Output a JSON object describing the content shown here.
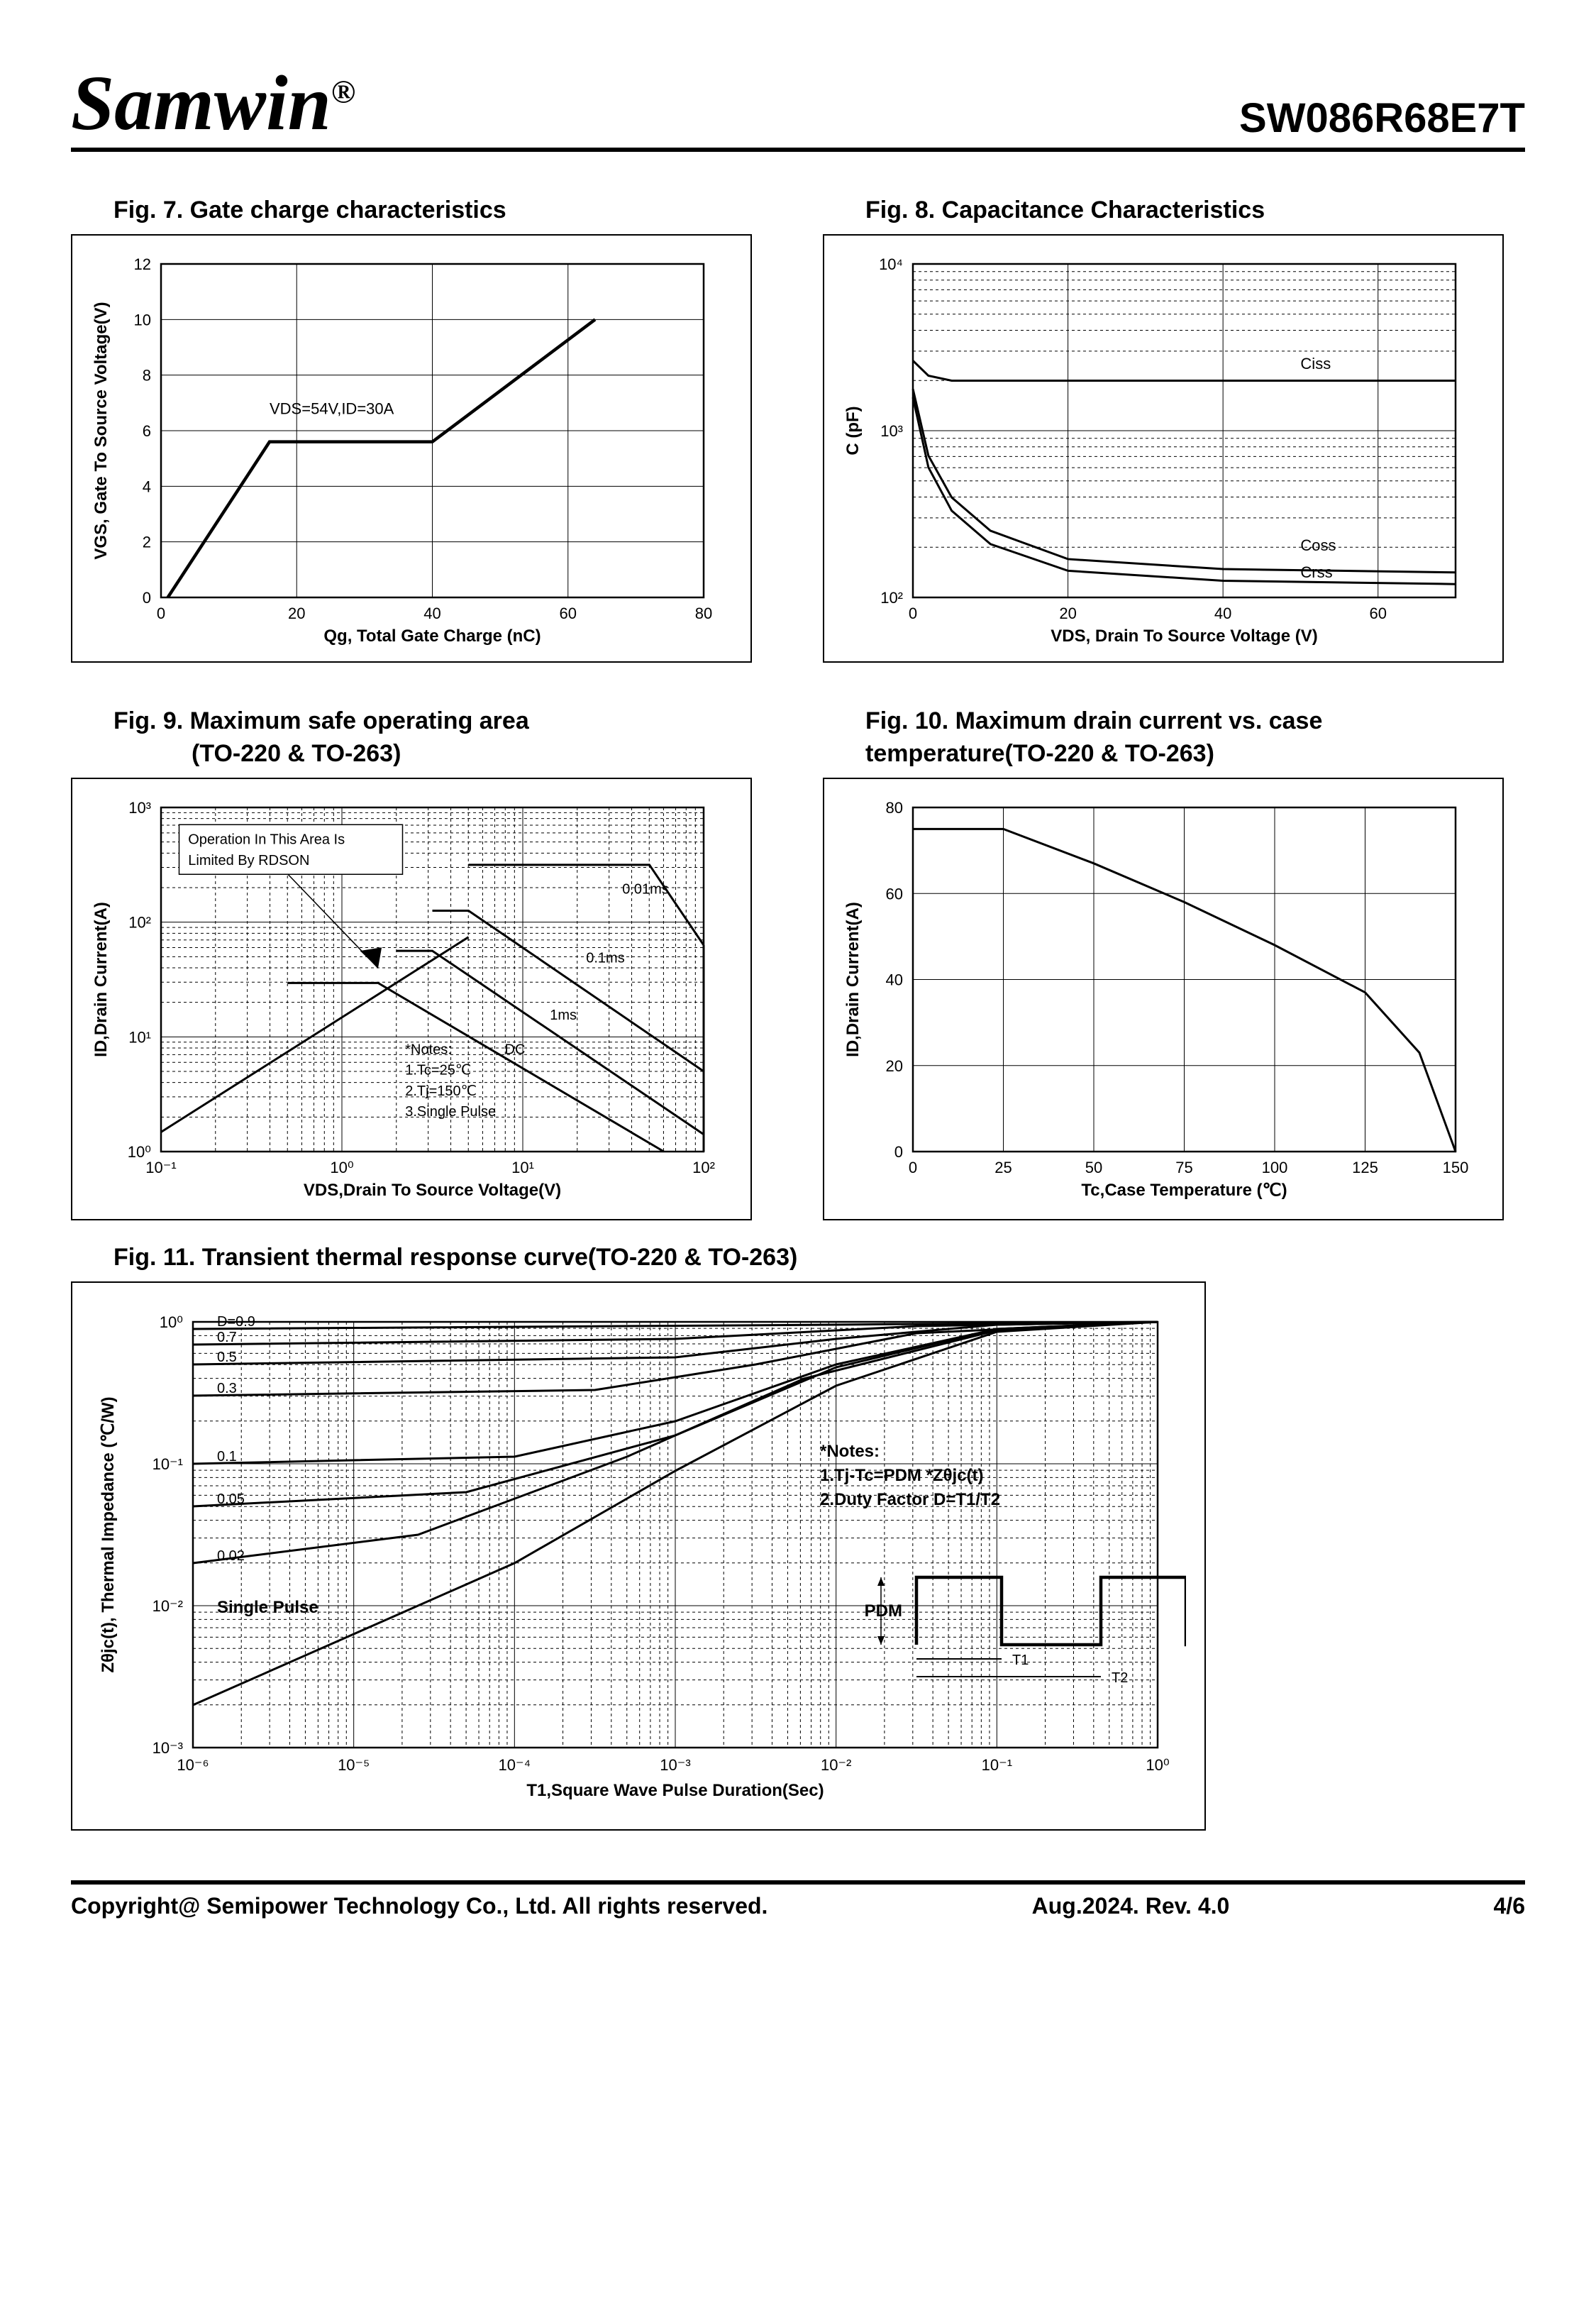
{
  "header": {
    "brand": "Samwin",
    "reg": "®",
    "part": "SW086R68E7T"
  },
  "footer": {
    "copyright": "Copyright@ Semipower Technology Co., Ltd. All rights reserved.",
    "rev": "Aug.2024. Rev. 4.0",
    "page": "4/6"
  },
  "fig7": {
    "title": "Fig. 7. Gate charge characteristics",
    "xlabel": "Qg, Total Gate Charge (nC)",
    "ylabel": "VGS, Gate To  Source Voltage(V)",
    "xlim": [
      0,
      80
    ],
    "xticks": [
      0,
      20,
      40,
      60,
      80
    ],
    "ylim": [
      0,
      12
    ],
    "yticks": [
      0,
      2,
      4,
      6,
      8,
      10,
      12
    ],
    "anno": "VDS=54V,ID=30A",
    "series": [
      [
        1,
        0
      ],
      [
        16,
        5.6
      ],
      [
        40,
        5.6
      ],
      [
        64,
        10
      ]
    ],
    "line_width": 4.5,
    "color": "#000000",
    "bg": "#ffffff"
  },
  "fig8": {
    "title": "Fig. 8. Capacitance Characteristics",
    "xlabel": "VDS, Drain To Source Voltage (V)",
    "ylabel": "C  (pF)",
    "xlim": [
      0,
      70
    ],
    "xticks": [
      0,
      20,
      40,
      60
    ],
    "ylog": [
      2,
      4
    ],
    "yticks": [
      "10²",
      "10³",
      "10⁴"
    ],
    "labels": [
      "Ciss",
      "Coss",
      "Crss"
    ],
    "ciss": [
      [
        0,
        3.42
      ],
      [
        2,
        3.33
      ],
      [
        5,
        3.3
      ],
      [
        70,
        3.3
      ]
    ],
    "coss": [
      [
        0,
        3.25
      ],
      [
        2,
        2.85
      ],
      [
        5,
        2.6
      ],
      [
        10,
        2.4
      ],
      [
        20,
        2.23
      ],
      [
        40,
        2.17
      ],
      [
        70,
        2.15
      ]
    ],
    "crss": [
      [
        0,
        3.2
      ],
      [
        2,
        2.78
      ],
      [
        5,
        2.52
      ],
      [
        10,
        2.32
      ],
      [
        20,
        2.16
      ],
      [
        40,
        2.1
      ],
      [
        70,
        2.08
      ]
    ],
    "line_width": 3,
    "color": "#000000"
  },
  "fig9": {
    "title1": "Fig. 9. Maximum safe operating area",
    "title2": "(TO-220 & TO-263)",
    "xlabel": "VDS,Drain To Source Voltage(V)",
    "ylabel": "ID,Drain Current(A)",
    "xlog": [
      -1,
      2
    ],
    "ylog": [
      0,
      3
    ],
    "xticks": [
      "10⁻¹",
      "10⁰",
      "10¹",
      "10²"
    ],
    "yticks": [
      "10⁰",
      "10¹",
      "10²",
      "10³"
    ],
    "anno1": "Operation In This Area Is",
    "anno2": "Limited By RDSON",
    "notes": [
      "*Notes:",
      "1.Tc=25℃",
      "2.Tj=150℃",
      "3.Single Pulse"
    ],
    "curve_labels": [
      "0.01ms",
      "0.1ms",
      "1ms",
      "DC"
    ],
    "rdson": [
      [
        -1,
        0.17
      ],
      [
        0.7,
        1.87
      ]
    ],
    "limit_top": [
      [
        0.7,
        2.5
      ],
      [
        1.7,
        2.5
      ]
    ],
    "c001": [
      [
        0.7,
        2.5
      ],
      [
        1.7,
        2.5
      ],
      [
        2,
        1.8
      ]
    ],
    "c01": [
      [
        0.5,
        2.1
      ],
      [
        0.7,
        2.1
      ],
      [
        2,
        0.7
      ]
    ],
    "c1": [
      [
        0.3,
        1.75
      ],
      [
        0.5,
        1.75
      ],
      [
        2,
        0.15
      ]
    ],
    "cdc": [
      [
        -0.3,
        1.47
      ],
      [
        0.2,
        1.47
      ],
      [
        1.78,
        0
      ]
    ],
    "line_width": 3,
    "color": "#000000"
  },
  "fig10": {
    "title1": "Fig. 10. Maximum drain current vs. case",
    "title2": "temperature(TO-220 & TO-263)",
    "xlabel": "Tc,Case Temperature (℃)",
    "ylabel": "ID,Drain Current(A)",
    "xlim": [
      0,
      150
    ],
    "xticks": [
      0,
      25,
      50,
      75,
      100,
      125,
      150
    ],
    "ylim": [
      0,
      80
    ],
    "yticks": [
      0,
      20,
      40,
      60,
      80
    ],
    "series": [
      [
        0,
        75
      ],
      [
        25,
        75
      ],
      [
        50,
        67
      ],
      [
        75,
        58
      ],
      [
        100,
        48
      ],
      [
        125,
        37
      ],
      [
        140,
        23
      ],
      [
        150,
        0
      ]
    ],
    "line_width": 3,
    "color": "#000000"
  },
  "fig11": {
    "title": "Fig. 11. Transient thermal response curve(TO-220 & TO-263)",
    "xlabel": "T1,Square Wave Pulse Duration(Sec)",
    "ylabel": "Zθjc(t), Thermal Impedance (℃/W)",
    "xlog": [
      -6,
      0
    ],
    "ylog": [
      -3,
      0
    ],
    "xticks": [
      "10⁻⁶",
      "10⁻⁵",
      "10⁻⁴",
      "10⁻³",
      "10⁻²",
      "10⁻¹",
      "10⁰"
    ],
    "yticks": [
      "10⁻³",
      "10⁻²",
      "10⁻¹",
      "10⁰"
    ],
    "d_labels": [
      "D=0.9",
      "0.7",
      "0.5",
      "0.3",
      "0.1",
      "0.05",
      "0.02",
      "Single Pulse"
    ],
    "notes": [
      "*Notes:",
      "1.Tj-Tc=PDM *Zθjc(t)",
      "2.Duty Factor D=T1/T2"
    ],
    "pulse_labels": [
      "PDM",
      "T1",
      "T2"
    ],
    "curves": {
      "d09": [
        [
          -6,
          -0.05
        ],
        [
          -2,
          -0.02
        ],
        [
          0,
          0
        ]
      ],
      "d07": [
        [
          -6,
          -0.16
        ],
        [
          -3,
          -0.12
        ],
        [
          -1.5,
          -0.03
        ],
        [
          0,
          0
        ]
      ],
      "d05": [
        [
          -6,
          -0.3
        ],
        [
          -3,
          -0.25
        ],
        [
          -2,
          -0.12
        ],
        [
          -1,
          -0.02
        ],
        [
          0,
          0
        ]
      ],
      "d03": [
        [
          -6,
          -0.52
        ],
        [
          -3.5,
          -0.48
        ],
        [
          -2.5,
          -0.3
        ],
        [
          -1.5,
          -0.08
        ],
        [
          0,
          0
        ]
      ],
      "d01": [
        [
          -6,
          -1.0
        ],
        [
          -4,
          -0.95
        ],
        [
          -3,
          -0.7
        ],
        [
          -2,
          -0.3
        ],
        [
          -1,
          -0.05
        ],
        [
          0,
          0
        ]
      ],
      "d005": [
        [
          -6,
          -1.3
        ],
        [
          -4.3,
          -1.2
        ],
        [
          -3,
          -0.8
        ],
        [
          -2,
          -0.32
        ],
        [
          -1,
          -0.05
        ],
        [
          0,
          0
        ]
      ],
      "d002": [
        [
          -6,
          -1.7
        ],
        [
          -4.6,
          -1.5
        ],
        [
          -3.3,
          -0.95
        ],
        [
          -2.2,
          -0.4
        ],
        [
          -1,
          -0.06
        ],
        [
          0,
          0
        ]
      ],
      "sp": [
        [
          -6,
          -2.7
        ],
        [
          -5,
          -2.2
        ],
        [
          -4,
          -1.7
        ],
        [
          -3,
          -1.05
        ],
        [
          -2,
          -0.45
        ],
        [
          -1,
          -0.07
        ],
        [
          0,
          0
        ]
      ]
    },
    "line_width": 2.5,
    "color": "#000000"
  }
}
